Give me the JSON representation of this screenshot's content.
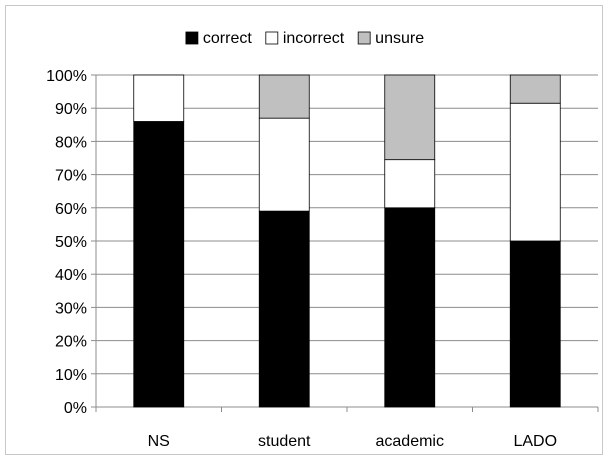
{
  "chart_data": {
    "type": "bar",
    "stacked": true,
    "percent_stacked": true,
    "categories": [
      "NS",
      "student",
      "academic",
      "LADO"
    ],
    "series": [
      {
        "name": "correct",
        "values": [
          86,
          59,
          60,
          50
        ],
        "color": "#000000"
      },
      {
        "name": "incorrect",
        "values": [
          14,
          28,
          14.5,
          41.5
        ],
        "color": "#ffffff"
      },
      {
        "name": "unsure",
        "values": [
          0,
          13,
          25.5,
          8.5
        ],
        "color": "#c0c0c0"
      }
    ],
    "yticks": [
      "0%",
      "10%",
      "20%",
      "30%",
      "40%",
      "50%",
      "60%",
      "70%",
      "80%",
      "90%",
      "100%"
    ],
    "ylim": [
      0,
      100
    ],
    "grid": true,
    "legend_position": "top"
  }
}
